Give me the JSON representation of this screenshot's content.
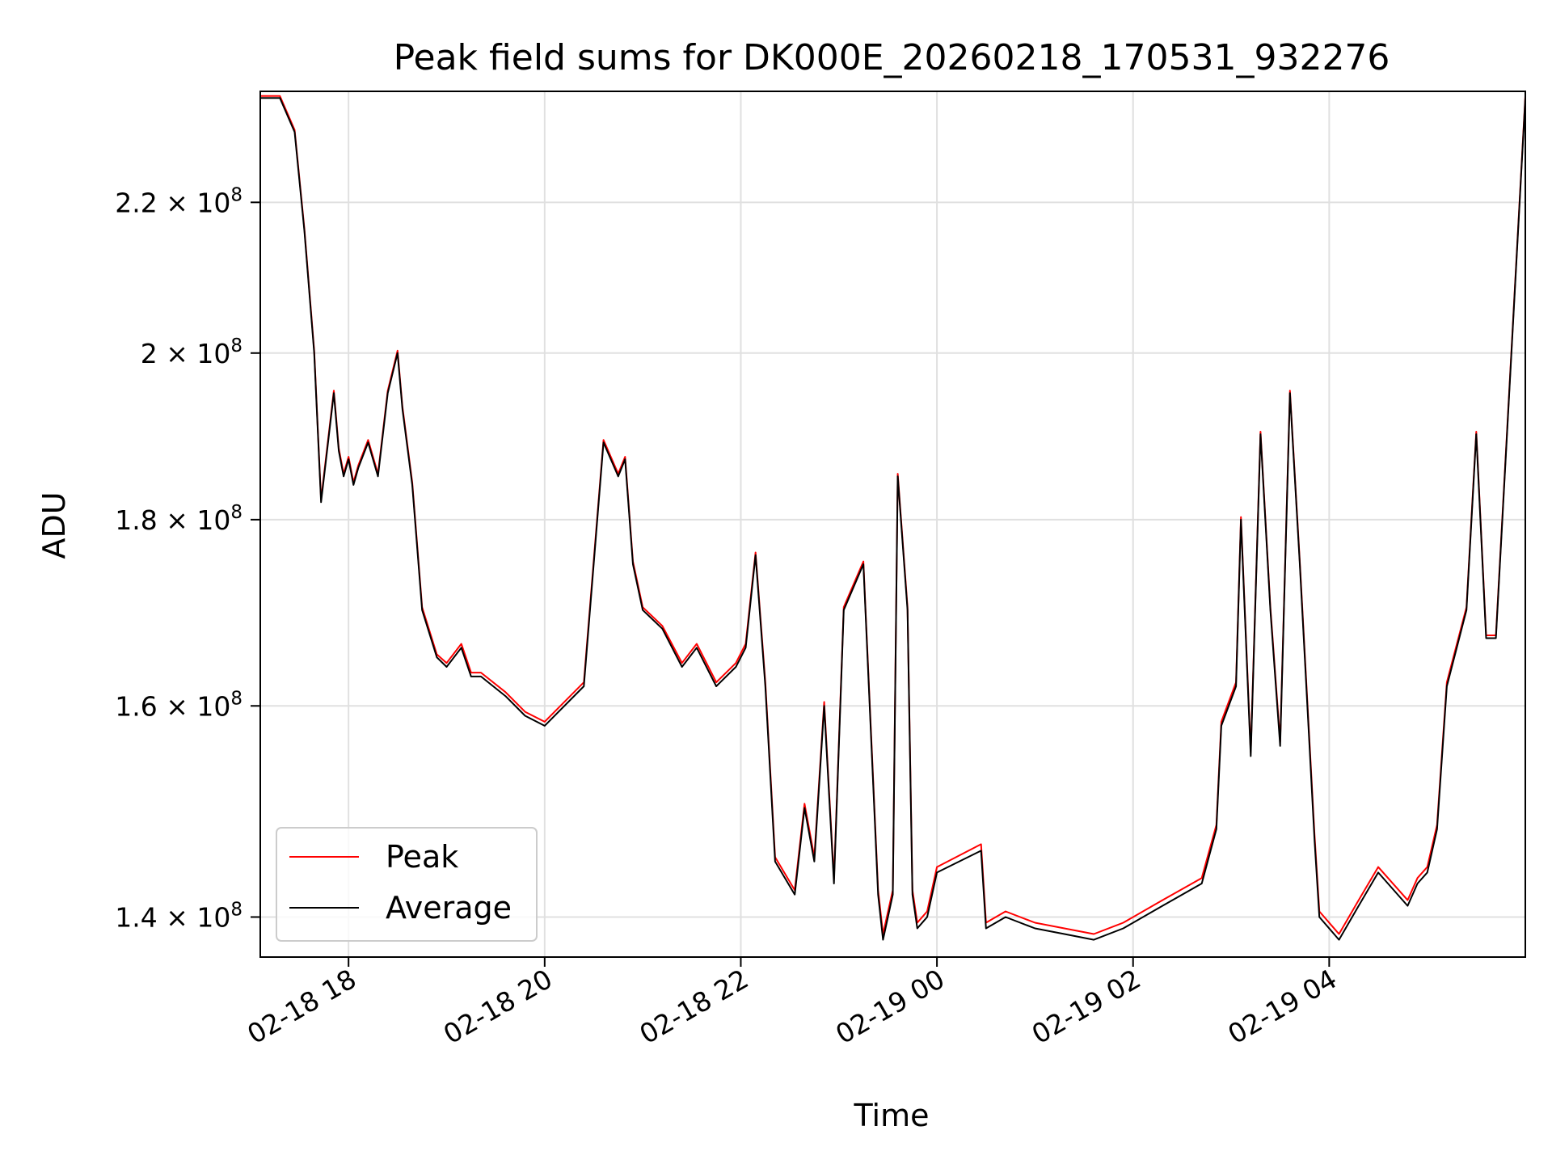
{
  "chart_data": {
    "type": "line",
    "title": "Peak field sums for DK000E_20260218_170531_932276",
    "xlabel": "Time",
    "ylabel": "ADU",
    "yscale": "log",
    "ylim": [
      136500000,
      236000000
    ],
    "xlim_hours": [
      -0.9,
      12.0
    ],
    "grid": true,
    "legend_position": "lower-left",
    "x_ticks": [
      {
        "hour": 0,
        "label": "02-18 18"
      },
      {
        "hour": 2,
        "label": "02-18 20"
      },
      {
        "hour": 4,
        "label": "02-18 22"
      },
      {
        "hour": 6,
        "label": "02-19 00"
      },
      {
        "hour": 8,
        "label": "02-19 02"
      },
      {
        "hour": 10,
        "label": "02-19 04"
      }
    ],
    "y_ticks": [
      {
        "value": 140000000,
        "mantissa": "1.4",
        "exp": "8"
      },
      {
        "value": 160000000,
        "mantissa": "1.6",
        "exp": "8"
      },
      {
        "value": 180000000,
        "mantissa": "1.8",
        "exp": "8"
      },
      {
        "value": 200000000,
        "mantissa": "2",
        "exp": "8"
      },
      {
        "value": 220000000,
        "mantissa": "2.2",
        "exp": "8"
      }
    ],
    "series": [
      {
        "name": "Peak",
        "color": "#ff0000"
      },
      {
        "name": "Average",
        "color": "#000000"
      }
    ],
    "x_hours": [
      -0.9,
      -0.7,
      -0.55,
      -0.45,
      -0.35,
      -0.28,
      -0.15,
      -0.1,
      -0.05,
      0.0,
      0.05,
      0.1,
      0.2,
      0.3,
      0.4,
      0.5,
      0.55,
      0.65,
      0.75,
      0.9,
      1.0,
      1.15,
      1.25,
      1.35,
      1.6,
      1.8,
      2.0,
      2.4,
      2.6,
      2.75,
      2.82,
      2.9,
      3.0,
      3.2,
      3.4,
      3.55,
      3.75,
      3.95,
      4.05,
      4.15,
      4.25,
      4.35,
      4.55,
      4.65,
      4.75,
      4.85,
      4.95,
      5.05,
      5.25,
      5.4,
      5.45,
      5.55,
      5.6,
      5.7,
      5.75,
      5.8,
      5.9,
      6.0,
      6.45,
      6.5,
      6.7,
      7.0,
      7.3,
      7.6,
      7.9,
      8.3,
      8.7,
      8.85,
      8.9,
      9.05,
      9.1,
      9.2,
      9.3,
      9.4,
      9.5,
      9.6,
      9.7,
      9.85,
      9.9,
      10.1,
      10.3,
      10.5,
      10.8,
      10.9,
      11.0,
      11.1,
      11.2,
      11.4,
      11.5,
      11.6,
      11.7,
      12.0
    ],
    "average": [
      235000000,
      235000000,
      230000000,
      216000000,
      200000000,
      182000000,
      195000000,
      188000000,
      185000000,
      187000000,
      184000000,
      186000000,
      189000000,
      185000000,
      195000000,
      200000000,
      193000000,
      184000000,
      170000000,
      165000000,
      164000000,
      166000000,
      163000000,
      163000000,
      161000000,
      159000000,
      158000000,
      162000000,
      189000000,
      185000000,
      187000000,
      175000000,
      170000000,
      168000000,
      164000000,
      166000000,
      162000000,
      164000000,
      166000000,
      176000000,
      162000000,
      145000000,
      142000000,
      150000000,
      145000000,
      160000000,
      143000000,
      170000000,
      175000000,
      142000000,
      138000000,
      142000000,
      185000000,
      170000000,
      142000000,
      139000000,
      140000000,
      144000000,
      146000000,
      139000000,
      140000000,
      139000000,
      138500000,
      138000000,
      139000000,
      141000000,
      143000000,
      148000000,
      158000000,
      162000000,
      180000000,
      155000000,
      190000000,
      170000000,
      156000000,
      195000000,
      175000000,
      147000000,
      140000000,
      138000000,
      141000000,
      144000000,
      141000000,
      143000000,
      144000000,
      148000000,
      162000000,
      170000000,
      190000000,
      167000000,
      167000000,
      235000000
    ],
    "peak": [
      235300000,
      235300000,
      230300000,
      216300000,
      200300000,
      182300000,
      195300000,
      188300000,
      185300000,
      187300000,
      184300000,
      186300000,
      189300000,
      185300000,
      195300000,
      200300000,
      193300000,
      184300000,
      170300000,
      165300000,
      164400000,
      166400000,
      163400000,
      163400000,
      161400000,
      159400000,
      158400000,
      162400000,
      189300000,
      185300000,
      187300000,
      175300000,
      170300000,
      168300000,
      164400000,
      166400000,
      162400000,
      164400000,
      166400000,
      176300000,
      162400000,
      145400000,
      142400000,
      150400000,
      145400000,
      160400000,
      143400000,
      170300000,
      175300000,
      142400000,
      138500000,
      142400000,
      185300000,
      170300000,
      142400000,
      139500000,
      140500000,
      144500000,
      146600000,
      139500000,
      140500000,
      139500000,
      139000000,
      138500000,
      139500000,
      141500000,
      143500000,
      148400000,
      158400000,
      162400000,
      180300000,
      155400000,
      190300000,
      170300000,
      156400000,
      195300000,
      175300000,
      147500000,
      140500000,
      138500000,
      141500000,
      144500000,
      141500000,
      143500000,
      144500000,
      148400000,
      162400000,
      170300000,
      190300000,
      167300000,
      167300000,
      235300000
    ]
  }
}
